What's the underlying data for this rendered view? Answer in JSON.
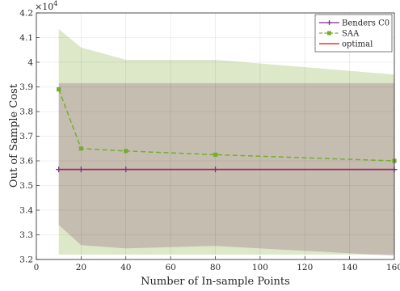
{
  "chart_data": {
    "type": "line",
    "xlabel": "Number of In-sample Points",
    "ylabel": "Out of Sample Cost",
    "xlim": [
      0,
      160
    ],
    "ylim": [
      32000,
      42000
    ],
    "xticks": [
      0,
      20,
      40,
      60,
      80,
      100,
      120,
      140,
      160
    ],
    "xtick_labels": [
      "0",
      "20",
      "40",
      "60",
      "80",
      "100",
      "120",
      "140",
      "160"
    ],
    "yticks": [
      32000,
      33000,
      34000,
      35000,
      36000,
      37000,
      38000,
      39000,
      40000,
      41000,
      42000
    ],
    "ytick_labels": [
      "3.2",
      "3.3",
      "3.4",
      "3.5",
      "3.6",
      "3.7",
      "3.8",
      "3.9",
      "4",
      "4.1",
      "4.2"
    ],
    "y_exponent_label": "×10",
    "y_exponent_power": "4",
    "grid": true,
    "legend_position": "top-right",
    "x": [
      10,
      20,
      40,
      80,
      160
    ],
    "series": [
      {
        "name": "Benders C0",
        "color": "#7e2f8e",
        "style": "solid",
        "marker": "plus",
        "values": [
          35650,
          35650,
          35650,
          35650,
          35650
        ],
        "band_lower": [
          33400,
          32580,
          32450,
          32550,
          32150
        ],
        "band_upper": [
          39150,
          39150,
          39150,
          39150,
          39150
        ],
        "band_color": "#e0d0ea"
      },
      {
        "name": "SAA",
        "color": "#77ac30",
        "style": "dashed",
        "marker": "square",
        "values": [
          38900,
          36500,
          36400,
          36250,
          36000
        ],
        "band_lower": [
          32200,
          32200,
          32200,
          32200,
          32200
        ],
        "band_upper": [
          41350,
          40600,
          40100,
          40100,
          39500
        ],
        "band_color": "#dde8c9"
      },
      {
        "name": "optimal",
        "color": "#ff0000",
        "style": "solid",
        "marker": "none",
        "values": [
          35650,
          35650,
          35650,
          35650,
          35650
        ]
      }
    ],
    "overlap_color": "#c5beb0"
  }
}
